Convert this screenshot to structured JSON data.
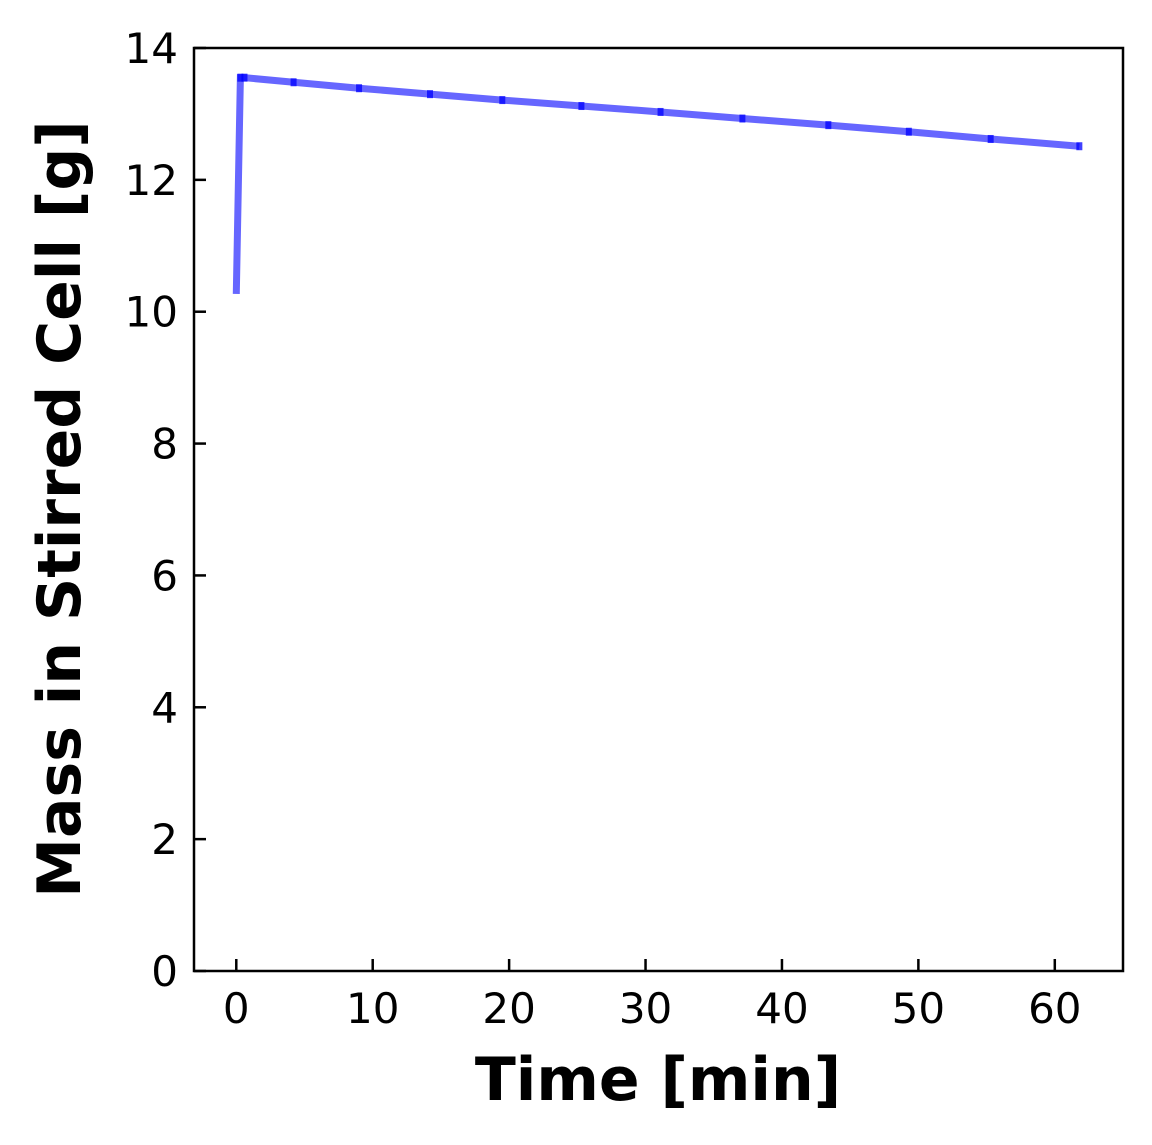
{
  "chart_data": {
    "type": "line",
    "title": "",
    "xlabel": "Time [min]",
    "ylabel": "Mass in Stirred Cell [g]",
    "xlim": [
      -3.1,
      65
    ],
    "ylim": [
      0,
      14
    ],
    "xticks": [
      0,
      10,
      20,
      30,
      40,
      50,
      60
    ],
    "yticks": [
      0,
      2,
      4,
      6,
      8,
      10,
      12,
      14
    ],
    "grid": false,
    "series": [
      {
        "color": "#0000ff",
        "opacity": 0.6,
        "x": [
          0.0,
          0.3,
          0.6,
          4.2,
          9.0,
          14.2,
          19.5,
          25.3,
          31.1,
          37.1,
          43.4,
          49.3,
          55.3,
          61.8
        ],
        "y": [
          10.27,
          13.55,
          13.55,
          13.48,
          13.39,
          13.3,
          13.21,
          13.12,
          13.03,
          12.93,
          12.83,
          12.73,
          12.62,
          12.51
        ]
      }
    ]
  }
}
